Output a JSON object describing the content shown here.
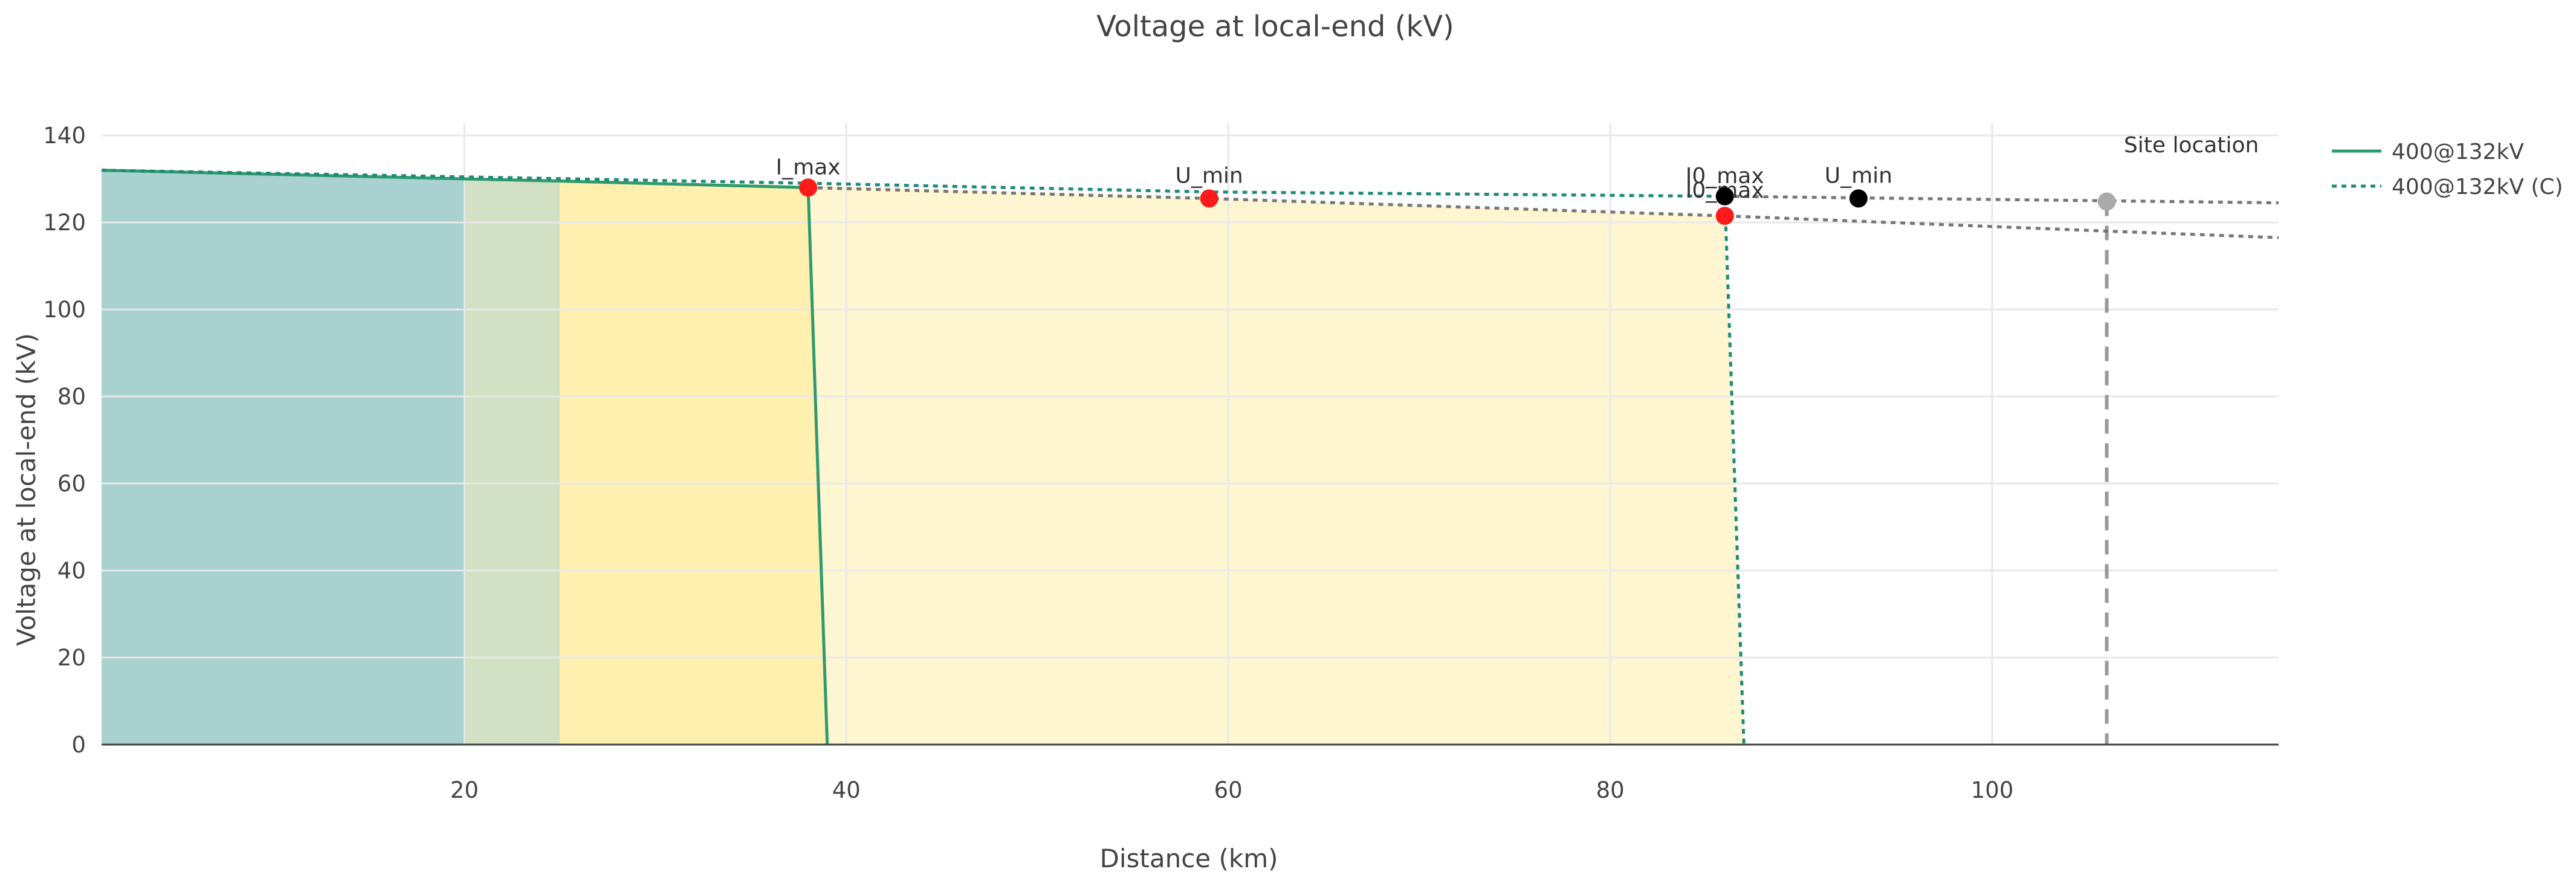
{
  "chart_data": {
    "type": "line",
    "title": "Voltage at local-end (kV)",
    "xlabel": "Distance (km)",
    "ylabel": "Voltage at local-end (kV)",
    "xlim": [
      1,
      115
    ],
    "ylim": [
      0,
      140
    ],
    "x_ticks": [
      20,
      40,
      60,
      80,
      100
    ],
    "y_ticks": [
      0,
      20,
      40,
      60,
      80,
      100,
      120,
      140
    ],
    "grid": true,
    "legend_position": "top-right",
    "zones": [
      {
        "x0": 1,
        "x1": 20,
        "color": "#a8d1cf"
      },
      {
        "x0": 20,
        "x1": 25,
        "color": "#d2e1c4"
      },
      {
        "x0": 25,
        "x1": 38,
        "color": "#fff0b0"
      }
    ],
    "fills": [
      {
        "name": "400@132kV",
        "points": [
          [
            1,
            132
          ],
          [
            20,
            130
          ],
          [
            25,
            129.5
          ],
          [
            38,
            128
          ],
          [
            39,
            0
          ]
        ],
        "color": "#a8d1cf"
      },
      {
        "name": "400@132kV (C)",
        "points": [
          [
            1,
            132
          ],
          [
            38,
            128.5
          ],
          [
            59,
            125.5
          ],
          [
            86,
            121.5
          ],
          [
            87,
            0
          ]
        ],
        "color": "#fdf6d1"
      }
    ],
    "series": [
      {
        "name": "400@132kV",
        "style": "solid",
        "color": "#2e9a6e",
        "x": [
          1,
          20,
          25,
          38,
          39
        ],
        "y": [
          132,
          130,
          129.5,
          128,
          0
        ]
      },
      {
        "name": "400@132kV (C)",
        "style": "dotted",
        "color": "#1e8a78",
        "x": [
          1,
          38,
          59,
          86,
          87
        ],
        "y": [
          132,
          129,
          127,
          126,
          0
        ]
      },
      {
        "style": "dotted",
        "color": "#777777",
        "x": [
          86,
          115
        ],
        "y": [
          126,
          124.5
        ]
      },
      {
        "style": "dotted",
        "color": "#777777",
        "x": [
          38,
          59,
          86,
          106,
          115
        ],
        "y": [
          128,
          125.5,
          121.5,
          118,
          116.5
        ]
      }
    ],
    "markers": [
      {
        "label": "I_max",
        "x": 38,
        "y": 128,
        "color": "#ff1a1a"
      },
      {
        "label": "U_min",
        "x": 59,
        "y": 125.5,
        "color": "#ff1a1a"
      },
      {
        "label": "I0_max",
        "x": 86,
        "y": 121.5,
        "color": "#ff1a1a"
      },
      {
        "label": "I0_max",
        "x": 86,
        "y": 126,
        "color": "#000000"
      },
      {
        "label": "U_min",
        "x": 93,
        "y": 125.5,
        "color": "#000000"
      },
      {
        "label": "",
        "x": 106,
        "y": 124.8,
        "color": "#aaaaaa"
      }
    ],
    "site_location": {
      "label": "Site location",
      "x": 106
    },
    "legend": [
      {
        "name": "400@132kV",
        "style": "solid",
        "color": "#2e9a6e"
      },
      {
        "name": "400@132kV (C)",
        "style": "dotted",
        "color": "#1e8a78"
      }
    ]
  }
}
